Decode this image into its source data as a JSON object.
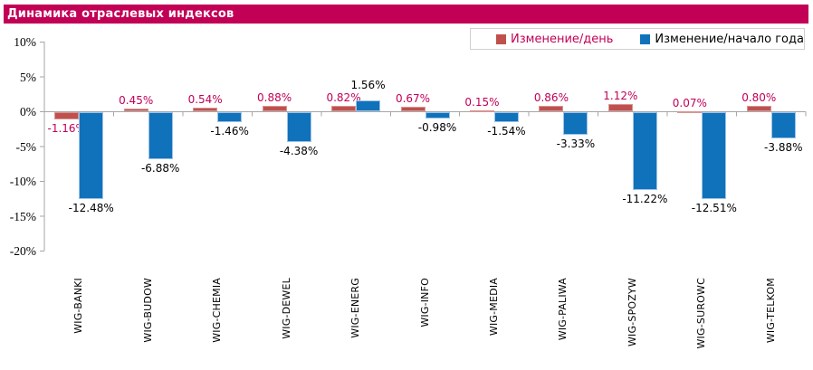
{
  "title": "Динамика отраслевых индексов",
  "colors": {
    "title_bar": "#C10056",
    "accent_crimson": "#C10056",
    "axis_gray": "#A6A6A6",
    "legend_border": "#D0D0D0",
    "day_bar": "#C0504D",
    "ytd_bar": "#1072BA"
  },
  "legend": {
    "items": [
      {
        "key": "day",
        "label": "Изменение/день",
        "color": "#C0504D",
        "text_color": "#C10056"
      },
      {
        "key": "ytd",
        "label": "Изменение/начало года",
        "color": "#1072BA",
        "text_color": "#000000"
      }
    ]
  },
  "chart_data": {
    "type": "bar",
    "title": "Динамика отраслевых индексов",
    "categories": [
      "WIG-BANKI",
      "WIG-BUDOW",
      "WIG-CHEMIA",
      "WIG-DEWEL",
      "WIG-ENERG",
      "WIG-INFO",
      "WIG-MEDIA",
      "WIG-PALIWA",
      "WIG-SPOZYW",
      "WIG-SUROWC",
      "WIG-TELKOM"
    ],
    "series": [
      {
        "key": "day",
        "name": "Изменение/день",
        "color": "#C0504D",
        "border_color": "#D79694",
        "label_color": "#C10056",
        "values": [
          -1.16,
          0.45,
          0.54,
          0.88,
          0.82,
          0.67,
          0.15,
          0.86,
          1.12,
          0.07,
          0.8
        ]
      },
      {
        "key": "ytd",
        "name": "Изменение/начало года",
        "color": "#1072BA",
        "border_color": "#9DC3E8",
        "label_color": "#000000",
        "values": [
          -12.48,
          -6.88,
          -1.46,
          -4.38,
          1.56,
          -0.98,
          -1.54,
          -3.33,
          -11.22,
          -12.51,
          -3.88
        ]
      }
    ],
    "value_suffix": "%",
    "ylim": [
      -20,
      10
    ],
    "yticks": [
      {
        "value": 10,
        "label": "10%"
      },
      {
        "value": 5,
        "label": "5%"
      },
      {
        "value": 0,
        "label": "0%"
      },
      {
        "value": -5,
        "label": "-5%"
      },
      {
        "value": -10,
        "label": "-10%"
      },
      {
        "value": -15,
        "label": "-15%"
      },
      {
        "value": -20,
        "label": "-20%"
      }
    ],
    "grid": false,
    "legend_position": "top-right"
  }
}
